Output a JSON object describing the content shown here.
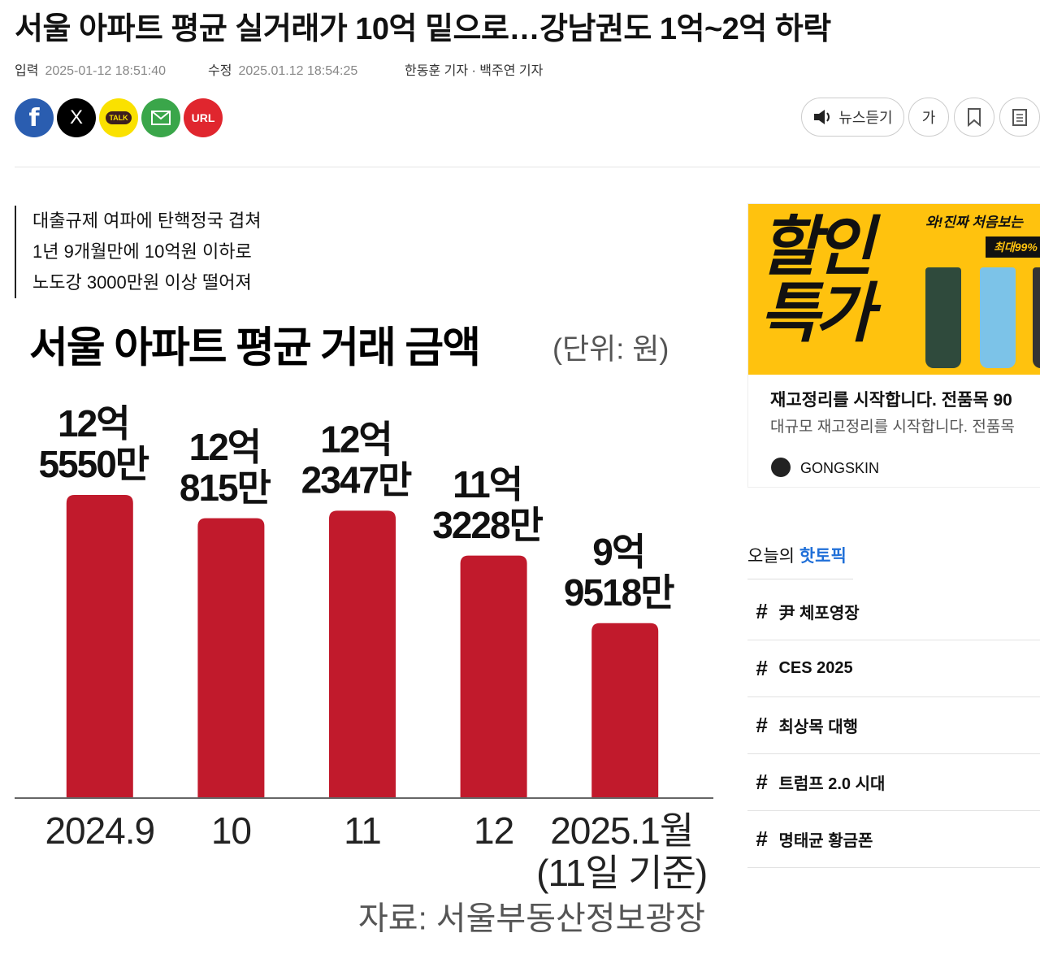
{
  "header": {
    "title": "서울 아파트 평균 실거래가 10억 밑으로…강남권도 1억~2억 하락",
    "input_label": "입력",
    "input_time": "2025-01-12 18:51:40",
    "edit_label": "수정",
    "edit_time": "2025.01.12 18:54:25",
    "reporters": "한동훈 기자 · 백주연 기자"
  },
  "share": {
    "facebook": "f",
    "x": "X",
    "kakao": "TALK",
    "url": "URL"
  },
  "tools": {
    "listen": "뉴스듣기",
    "font": "가"
  },
  "summary": [
    "대출규제 여파에 탄핵정국 겹쳐",
    "1년 9개월만에 10억원 이하로",
    "노도강 3000만원 이상 떨어져"
  ],
  "chart_data": {
    "type": "bar",
    "title": "서울 아파트 평균 거래 금액",
    "unit": "(단위: 원)",
    "categories": [
      "2024.9",
      "10",
      "11",
      "12",
      "2025.1월"
    ],
    "category_note": "(11일 기준)",
    "values": [
      1255500000,
      1208150000,
      1223470000,
      1132280000,
      995180000
    ],
    "value_labels": [
      [
        "12억",
        "5550만"
      ],
      [
        "12억",
        "815만"
      ],
      [
        "12억",
        "2347만"
      ],
      [
        "11억",
        "3228만"
      ],
      [
        "9억",
        "9518만"
      ]
    ],
    "color": "#c11a2c",
    "ylim": [
      640000000,
      1300000000
    ],
    "source": "자료: 서울부동산정보광장"
  },
  "ad": {
    "headline": "할인\n특가",
    "tag": "와!진짜 처음보는",
    "discount": "최대99%",
    "line1": "재고정리를 시작합니다. 전품목 90",
    "line2": "대규모 재고정리를 시작합니다. 전품목",
    "brand": "GONGSKIN"
  },
  "hot_topics": {
    "title_prefix": "오늘의",
    "title_highlight": "핫토픽",
    "hash": "#",
    "items": [
      "尹 체포영장",
      "CES 2025",
      "최상목 대행",
      "트럼프 2.0 시대",
      "명태균 황금폰"
    ]
  }
}
